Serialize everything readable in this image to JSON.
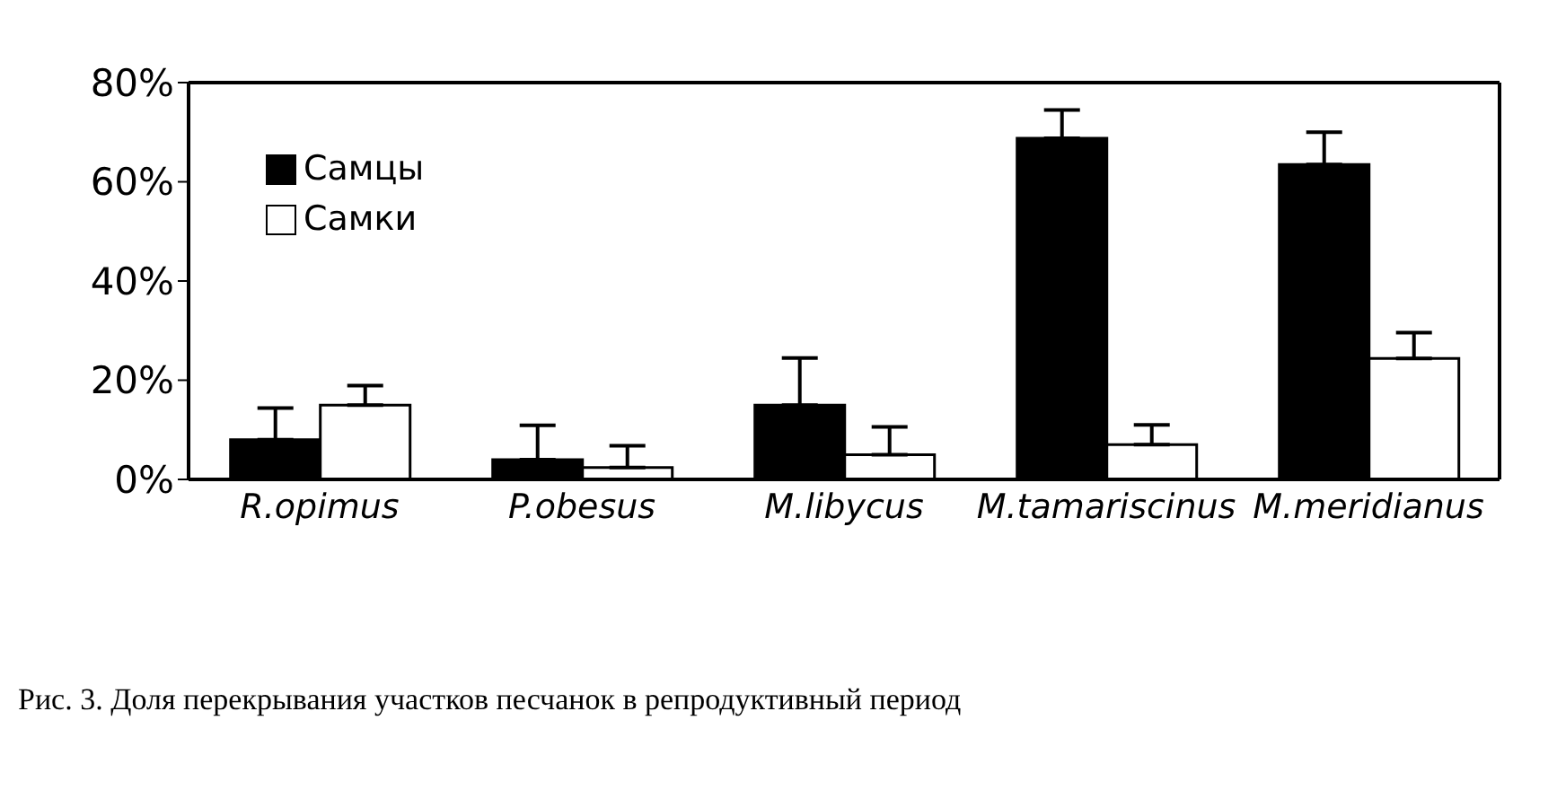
{
  "chart_data": {
    "type": "bar",
    "categories": [
      "R.opimus",
      "P.obesus",
      "M.libycus",
      "M.tamariscinus",
      "M.meridianus"
    ],
    "series": [
      {
        "name": "Самцы",
        "color": "#000000",
        "values": [
          8,
          4,
          15,
          68.8,
          63.5
        ],
        "errors": [
          [
            8,
            14.4
          ],
          [
            4,
            10.9
          ],
          [
            15,
            24.5
          ],
          [
            68.8,
            74.5
          ],
          [
            63.5,
            70
          ]
        ]
      },
      {
        "name": "Самки",
        "color": "#ffffff",
        "values": [
          15,
          2.4,
          5,
          7,
          24.4
        ],
        "errors": [
          [
            15,
            18.9
          ],
          [
            2.4,
            6.8
          ],
          [
            5,
            10.6
          ],
          [
            7,
            11
          ],
          [
            24.4,
            29.6
          ]
        ]
      }
    ],
    "ylim": [
      0,
      80
    ],
    "yticks": [
      {
        "value": 0,
        "label": "0%"
      },
      {
        "value": 20,
        "label": "20%"
      },
      {
        "value": 40,
        "label": "40%"
      },
      {
        "value": 60,
        "label": "60%"
      },
      {
        "value": 80,
        "label": "80%"
      }
    ],
    "grid": false,
    "legend": "top left",
    "annotations": [
      "Рис. 3. Доля перекрывания участков песчанок в репродуктивный период"
    ]
  }
}
